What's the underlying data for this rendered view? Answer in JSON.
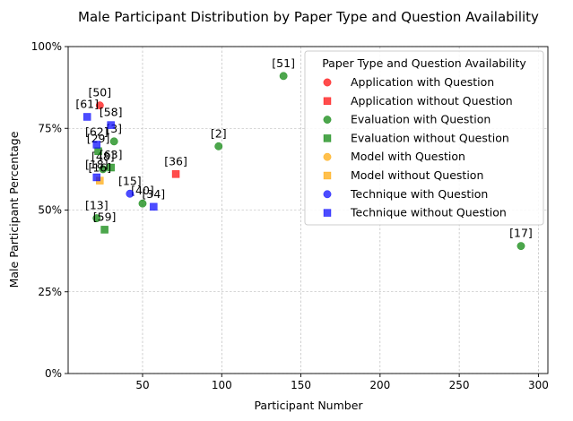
{
  "chart_data": {
    "type": "scatter",
    "title": "Male Participant Distribution by Paper Type and Question Availability",
    "xlabel": "Participant Number",
    "ylabel": "Male Participant Percentage",
    "xlim": [
      3,
      306
    ],
    "ylim": [
      0,
      100
    ],
    "xticks": [
      50,
      100,
      150,
      200,
      250,
      300
    ],
    "xtick_labels": [
      "50",
      "100",
      "150",
      "200",
      "250",
      "300"
    ],
    "yticks": [
      0,
      25,
      50,
      75,
      100
    ],
    "ytick_labels": [
      "0%",
      "25%",
      "50%",
      "75%",
      "100%"
    ],
    "grid": true,
    "legend_title": "Paper Type and Question Availability",
    "legend_position": "top-right",
    "series": [
      {
        "name": "Application with Question",
        "color": "#ff0000",
        "marker": "circle",
        "points": [
          {
            "x": 23,
            "y": 82,
            "label": "[50]"
          }
        ]
      },
      {
        "name": "Application without Question",
        "color": "#ff0000",
        "marker": "square",
        "points": [
          {
            "x": 71,
            "y": 61,
            "label": "[36]"
          }
        ]
      },
      {
        "name": "Evaluation with Question",
        "color": "#008000",
        "marker": "circle",
        "points": [
          {
            "x": 139,
            "y": 91,
            "label": "[51]"
          },
          {
            "x": 98,
            "y": 69.5,
            "label": "[2]"
          },
          {
            "x": 32,
            "y": 71,
            "label": "[3]"
          },
          {
            "x": 25,
            "y": 62.5,
            "label": "[48]"
          },
          {
            "x": 50,
            "y": 52,
            "label": "[40]"
          },
          {
            "x": 21,
            "y": 47.5,
            "label": "[13]"
          },
          {
            "x": 289,
            "y": 39,
            "label": "[17]"
          }
        ]
      },
      {
        "name": "Evaluation without Question",
        "color": "#008000",
        "marker": "square",
        "points": [
          {
            "x": 22,
            "y": 68,
            "label": "[29]"
          },
          {
            "x": 30,
            "y": 63,
            "label": "[63]"
          },
          {
            "x": 26,
            "y": 44,
            "label": "[59]"
          }
        ]
      },
      {
        "name": "Model with Question",
        "color": "#ffa500",
        "marker": "circle",
        "points": []
      },
      {
        "name": "Model without Question",
        "color": "#ffa500",
        "marker": "square",
        "points": [
          {
            "x": 23,
            "y": 59,
            "label": "[16]"
          }
        ]
      },
      {
        "name": "Technique with Question",
        "color": "#0000ff",
        "marker": "circle",
        "points": [
          {
            "x": 42,
            "y": 55,
            "label": "[15]"
          }
        ]
      },
      {
        "name": "Technique without Question",
        "color": "#0000ff",
        "marker": "square",
        "points": [
          {
            "x": 15,
            "y": 78.5,
            "label": "[61]"
          },
          {
            "x": 30,
            "y": 76,
            "label": "[58]"
          },
          {
            "x": 21,
            "y": 70,
            "label": "[62]"
          },
          {
            "x": 21,
            "y": 60,
            "label": "[18]"
          },
          {
            "x": 57,
            "y": 51,
            "label": "[34]"
          }
        ]
      }
    ]
  }
}
